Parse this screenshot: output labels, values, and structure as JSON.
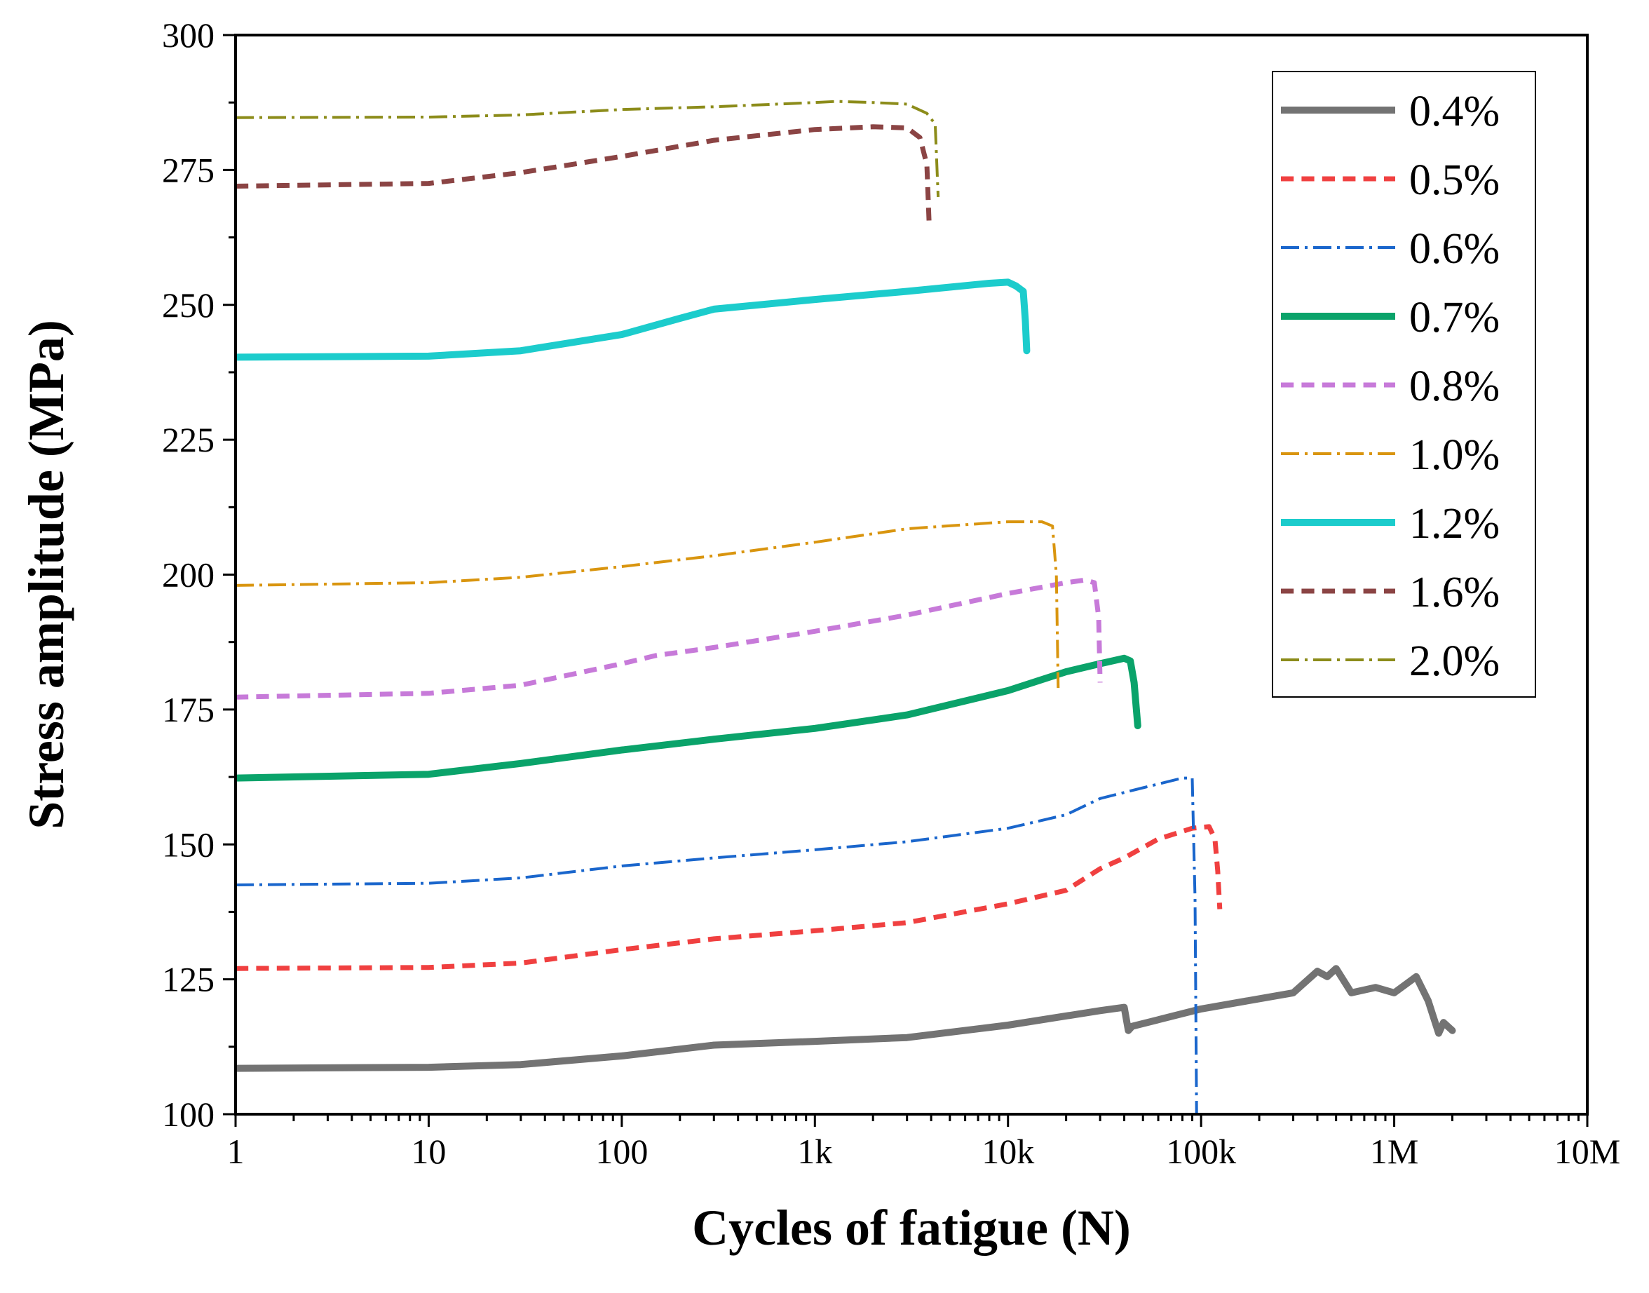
{
  "chart_data": {
    "type": "line",
    "title": "",
    "xlabel": "Cycles of fatigue (N)",
    "ylabel": "Stress amplitude (MPa)",
    "xscale": "log",
    "xlim": [
      1,
      10000000
    ],
    "ylim": [
      100,
      300
    ],
    "xticks": [
      1,
      10,
      100,
      1000,
      10000,
      100000,
      1000000,
      10000000
    ],
    "xtick_labels": [
      "1",
      "10",
      "100",
      "1k",
      "10k",
      "100k",
      "1M",
      "10M"
    ],
    "yticks": [
      100,
      125,
      150,
      175,
      200,
      225,
      250,
      275,
      300
    ],
    "ytick_labels": [
      "100",
      "125",
      "150",
      "175",
      "200",
      "225",
      "250",
      "275",
      "300"
    ],
    "grid": false,
    "legend_position": "top-right",
    "series": [
      {
        "name": "0.4%",
        "color": "#737373",
        "style": "solid",
        "width": 10,
        "x": [
          1,
          10,
          30,
          100,
          300,
          1000,
          3000,
          10000,
          30000,
          40000,
          42000,
          44000,
          60000,
          100000,
          300000,
          400000,
          450000,
          500000,
          600000,
          800000,
          1000000,
          1300000,
          1500000,
          1700000,
          1800000,
          2000000
        ],
        "y": [
          108.5,
          108.7,
          109.2,
          110.8,
          112.8,
          113.5,
          114.2,
          116.5,
          119.2,
          119.8,
          115.5,
          116.3,
          117.5,
          119.5,
          122.5,
          126.5,
          125.5,
          127,
          122.5,
          123.5,
          122.5,
          125.5,
          121,
          115,
          117,
          115.5
        ]
      },
      {
        "name": "0.5%",
        "color": "#f04040",
        "style": "dash",
        "width": 7,
        "x": [
          1,
          10,
          30,
          100,
          300,
          1000,
          3000,
          10000,
          20000,
          30000,
          40000,
          60000,
          90000,
          110000,
          118000,
          122000,
          125000
        ],
        "y": [
          127,
          127.2,
          128,
          130.5,
          132.5,
          134,
          135.5,
          139,
          141.5,
          145.5,
          147.5,
          151,
          153,
          153.3,
          151,
          145,
          138
        ]
      },
      {
        "name": "0.6%",
        "color": "#1a66cc",
        "style": "dashdot",
        "width": 4,
        "x": [
          1,
          10,
          30,
          100,
          300,
          1000,
          3000,
          10000,
          20000,
          30000,
          50000,
          80000,
          90000,
          93000,
          95000
        ],
        "y": [
          142.5,
          142.8,
          143.8,
          146,
          147.5,
          149,
          150.5,
          153,
          155.5,
          158.5,
          160.5,
          162.3,
          162.3,
          140,
          95
        ]
      },
      {
        "name": "0.7%",
        "color": "#0aa36a",
        "style": "solid",
        "width": 10,
        "x": [
          1,
          10,
          30,
          100,
          300,
          1000,
          3000,
          10000,
          20000,
          30000,
          40000,
          43000,
          45000,
          47000
        ],
        "y": [
          162.3,
          163,
          165,
          167.5,
          169.5,
          171.5,
          174,
          178.5,
          182,
          183.5,
          184.5,
          184,
          180,
          172
        ]
      },
      {
        "name": "0.8%",
        "color": "#c77ad9",
        "style": "dash",
        "width": 7,
        "x": [
          1,
          10,
          30,
          100,
          150,
          300,
          1000,
          3000,
          10000,
          20000,
          25000,
          28000,
          29500,
          30000
        ],
        "y": [
          177.3,
          178,
          179.5,
          183.5,
          185,
          186.5,
          189.5,
          192.5,
          196.5,
          198.5,
          199,
          198.5,
          192,
          180
        ]
      },
      {
        "name": "1.0%",
        "color": "#d9950f",
        "style": "dashdot",
        "width": 4,
        "x": [
          1,
          10,
          30,
          100,
          300,
          1000,
          3000,
          10000,
          15000,
          17000,
          17800,
          18200
        ],
        "y": [
          198,
          198.5,
          199.5,
          201.5,
          203.5,
          206,
          208.5,
          209.8,
          209.8,
          209,
          200,
          179
        ]
      },
      {
        "name": "1.2%",
        "color": "#1ccccc",
        "style": "solid",
        "width": 10,
        "x": [
          1,
          10,
          30,
          100,
          200,
          300,
          1000,
          3000,
          8000,
          10000,
          11000,
          12000,
          12300,
          12500
        ],
        "y": [
          240.3,
          240.5,
          241.5,
          244.5,
          247.5,
          249.2,
          251,
          252.5,
          254,
          254.2,
          253.5,
          252.5,
          247,
          241.5
        ]
      },
      {
        "name": "1.6%",
        "color": "#8b4444",
        "style": "dash",
        "width": 7,
        "x": [
          1,
          10,
          30,
          100,
          300,
          1000,
          2000,
          3000,
          3500,
          3800,
          3900
        ],
        "y": [
          272,
          272.5,
          274.5,
          277.5,
          280.5,
          282.5,
          283,
          282.8,
          281,
          276,
          265.5
        ]
      },
      {
        "name": "2.0%",
        "color": "#8c8c1a",
        "style": "dashdot",
        "width": 4,
        "x": [
          1,
          10,
          30,
          100,
          300,
          1000,
          1300,
          2000,
          3000,
          3800,
          4200,
          4350
        ],
        "y": [
          284.7,
          284.8,
          285.2,
          286.2,
          286.7,
          287.5,
          287.7,
          287.5,
          287.2,
          285.5,
          283.5,
          270
        ]
      }
    ]
  }
}
